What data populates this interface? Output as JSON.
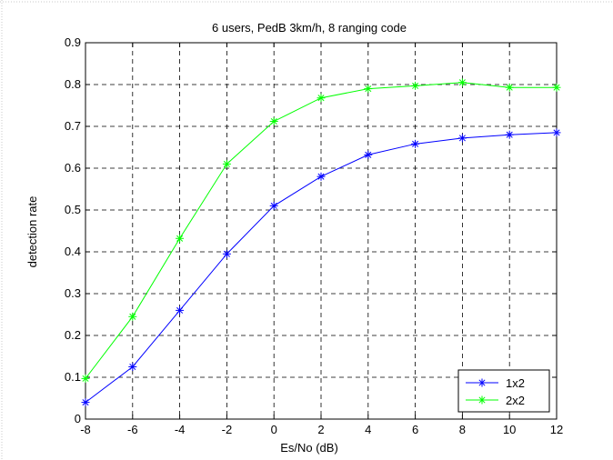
{
  "chart_data": {
    "type": "line",
    "title": "6 users, PedB 3km/h, 8 ranging code",
    "xlabel": "Es/No (dB)",
    "ylabel": "detection rate",
    "x": [
      -8,
      -6,
      -4,
      -2,
      0,
      2,
      4,
      6,
      8,
      10,
      12
    ],
    "xlim": [
      -8,
      12
    ],
    "ylim": [
      0,
      0.9
    ],
    "xticks": [
      "-8",
      "-6",
      "-4",
      "-2",
      "0",
      "2",
      "4",
      "6",
      "8",
      "10",
      "12"
    ],
    "yticks": [
      "0",
      "0.1",
      "0.2",
      "0.3",
      "0.4",
      "0.5",
      "0.6",
      "0.7",
      "0.8",
      "0.9"
    ],
    "grid": true,
    "legend_position": "bottom-right",
    "series": [
      {
        "name": "1x2",
        "color": "#0000ff",
        "marker": "asterisk",
        "values": [
          0.04,
          0.125,
          0.26,
          0.395,
          0.51,
          0.58,
          0.632,
          0.658,
          0.672,
          0.68,
          0.685
        ]
      },
      {
        "name": "2x2",
        "color": "#00ff00",
        "marker": "asterisk",
        "values": [
          0.097,
          0.245,
          0.432,
          0.61,
          0.712,
          0.768,
          0.79,
          0.797,
          0.805,
          0.793,
          0.793
        ]
      }
    ]
  }
}
